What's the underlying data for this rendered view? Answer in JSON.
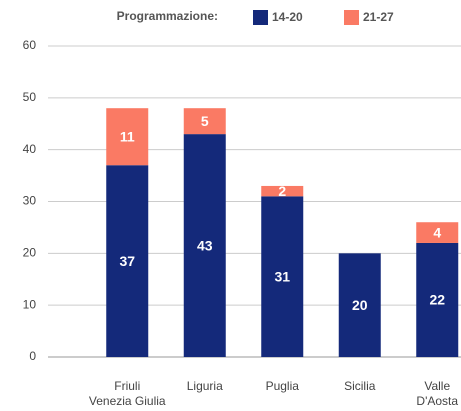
{
  "chart_data": {
    "type": "bar",
    "stacked": true,
    "legend_title": "Programmazione:",
    "categories": [
      "Friuli\nVenezia Giulia",
      "Liguria",
      "Puglia",
      "Sicilia",
      "Valle\nD'Aosta"
    ],
    "series": [
      {
        "name": "14-20",
        "color": "#14297a",
        "values": [
          37,
          43,
          31,
          20,
          22
        ]
      },
      {
        "name": "21-27",
        "color": "#fa7a64",
        "values": [
          11,
          5,
          2,
          null,
          4
        ]
      }
    ],
    "ylim": [
      0,
      60
    ],
    "yticks": [
      0,
      10,
      20,
      30,
      40,
      50,
      60
    ],
    "grid": true
  }
}
